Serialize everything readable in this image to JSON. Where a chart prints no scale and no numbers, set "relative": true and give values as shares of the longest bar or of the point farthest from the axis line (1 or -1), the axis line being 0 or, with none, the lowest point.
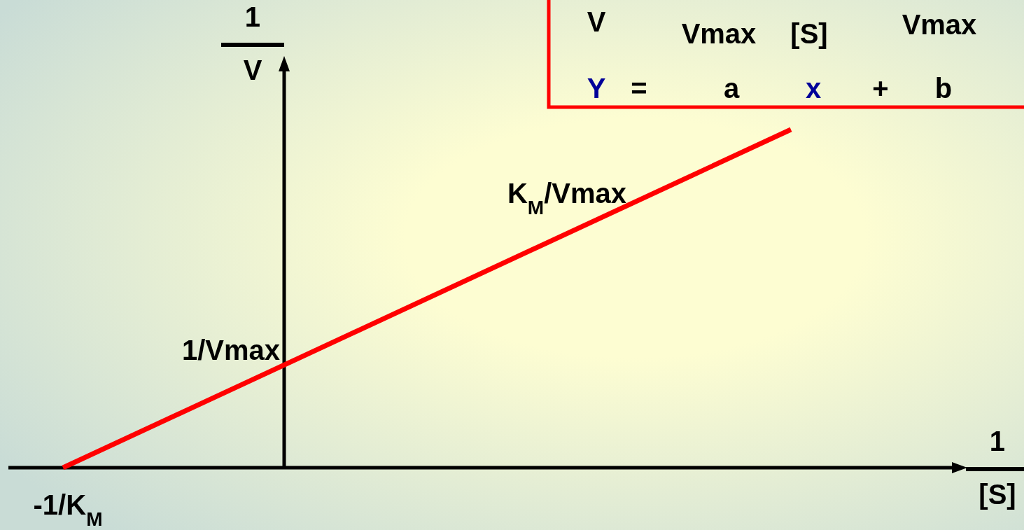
{
  "chart_data": {
    "type": "line",
    "relative": true,
    "categories": [
      null,
      null
    ],
    "values": [
      0,
      1
    ],
    "color": "#ff0000",
    "xlabel": "1/[S]",
    "ylabel": "1/V",
    "annotations": [
      "1/Vmax",
      "K$_{M}$/Vmax",
      "-1/K$_{M}$",
      "V",
      "Vmax",
      "[S]",
      "Vmax",
      "Y",
      "=",
      "a",
      "x",
      "+",
      "b"
    ]
  }
}
